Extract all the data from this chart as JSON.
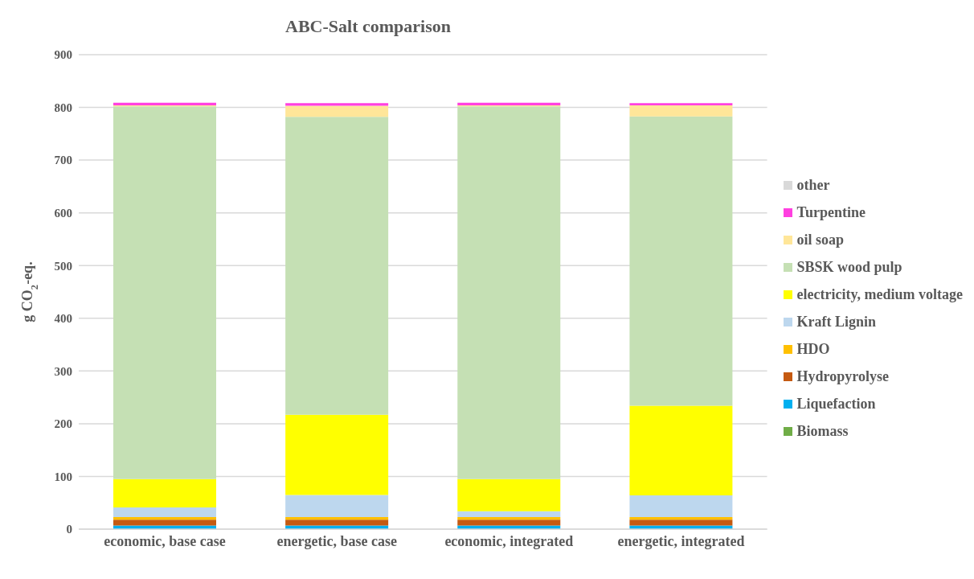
{
  "chart_data": {
    "type": "bar",
    "title": "ABC-Salt comparison",
    "ylabel": "g CO$_{2}$-eq.",
    "stacked": true,
    "categories": [
      "economic, base case",
      "energetic, base case",
      "economic, integrated",
      "energetic, integrated"
    ],
    "series": [
      {
        "name": "Biomass",
        "color": "#70ad47",
        "values": [
          0,
          0,
          0,
          0
        ]
      },
      {
        "name": "Liquefaction",
        "color": "#00b0f0",
        "values": [
          7,
          7,
          7,
          7
        ]
      },
      {
        "name": "Hydropyrolyse",
        "color": "#c55a11",
        "values": [
          11,
          11,
          11,
          11
        ]
      },
      {
        "name": "HDO",
        "color": "#ffc000",
        "values": [
          5,
          5,
          5,
          5
        ]
      },
      {
        "name": "Kraft Lignin",
        "color": "#bdd7ee",
        "values": [
          18,
          42,
          11,
          41
        ]
      },
      {
        "name": "electricity, medium voltage",
        "color": "#ffff00",
        "values": [
          54,
          152,
          61,
          170
        ]
      },
      {
        "name": "SBSK wood pulp",
        "color": "#c5e0b4",
        "values": [
          707,
          565,
          707,
          549
        ]
      },
      {
        "name": "oil soap",
        "color": "#ffe699",
        "values": [
          2,
          21,
          2,
          21
        ]
      },
      {
        "name": "Turpentine",
        "color": "#ff40e0",
        "values": [
          5,
          5,
          5,
          4
        ]
      },
      {
        "name": "other",
        "color": "#d9d9d9",
        "values": [
          0,
          0,
          0,
          0
        ]
      }
    ],
    "ylim": [
      0,
      900
    ],
    "yticks": [
      0,
      100,
      200,
      300,
      400,
      500,
      600,
      700,
      800,
      900
    ],
    "grid": "y",
    "legend": "right"
  }
}
